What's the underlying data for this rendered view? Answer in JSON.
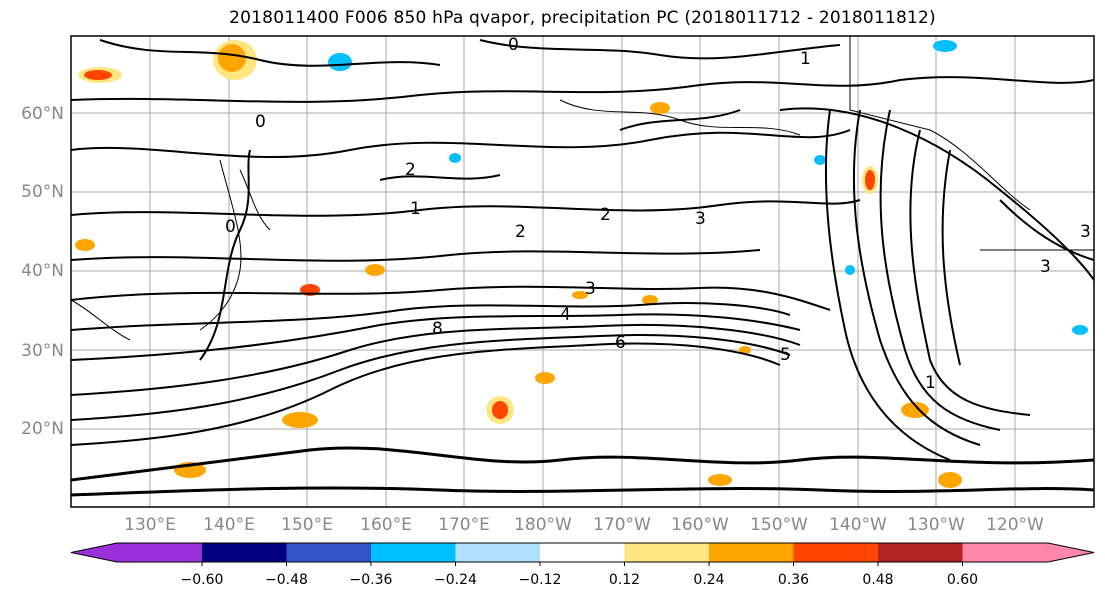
{
  "title": "2018011400 F006 850 hPa qvapor, precipitation PC (2018011712 - 2018011812)",
  "lat_labels": [
    "60°N",
    "50°N",
    "40°N",
    "30°N",
    "20°N"
  ],
  "lon_labels": [
    "130°E",
    "140°E",
    "150°E",
    "160°E",
    "170°E",
    "180°W",
    "170°W",
    "160°W",
    "150°W",
    "140°W",
    "130°W",
    "120°W"
  ],
  "contour_labels": [
    "0",
    "0",
    "1",
    "1",
    "2",
    "2",
    "3",
    "3",
    "4",
    "5",
    "6",
    "8",
    "0",
    "2",
    "3",
    "1",
    "3"
  ],
  "colorbar": {
    "tick_labels": [
      "−0.60",
      "−0.48",
      "−0.36",
      "−0.24",
      "−0.12",
      "0.12",
      "0.24",
      "0.36",
      "0.48",
      "0.60"
    ],
    "colors": [
      "#9b30d9",
      "#000080",
      "#3355cc",
      "#00bfff",
      "#b0e0ff",
      "#ffffff",
      "#ffe680",
      "#ffa500",
      "#ff4500",
      "#b22222",
      "#ff88aa"
    ],
    "under_color": "#9b30d9",
    "over_color": "#ff88aa"
  },
  "colors": {
    "positive_fill": "#ffa500",
    "positive_light": "#ffe680",
    "positive_strong": "#ff4500",
    "negative_fill": "#00bfff",
    "grid": "#aaaaaa",
    "contour": "#000000",
    "axis_label": "#888888"
  }
}
